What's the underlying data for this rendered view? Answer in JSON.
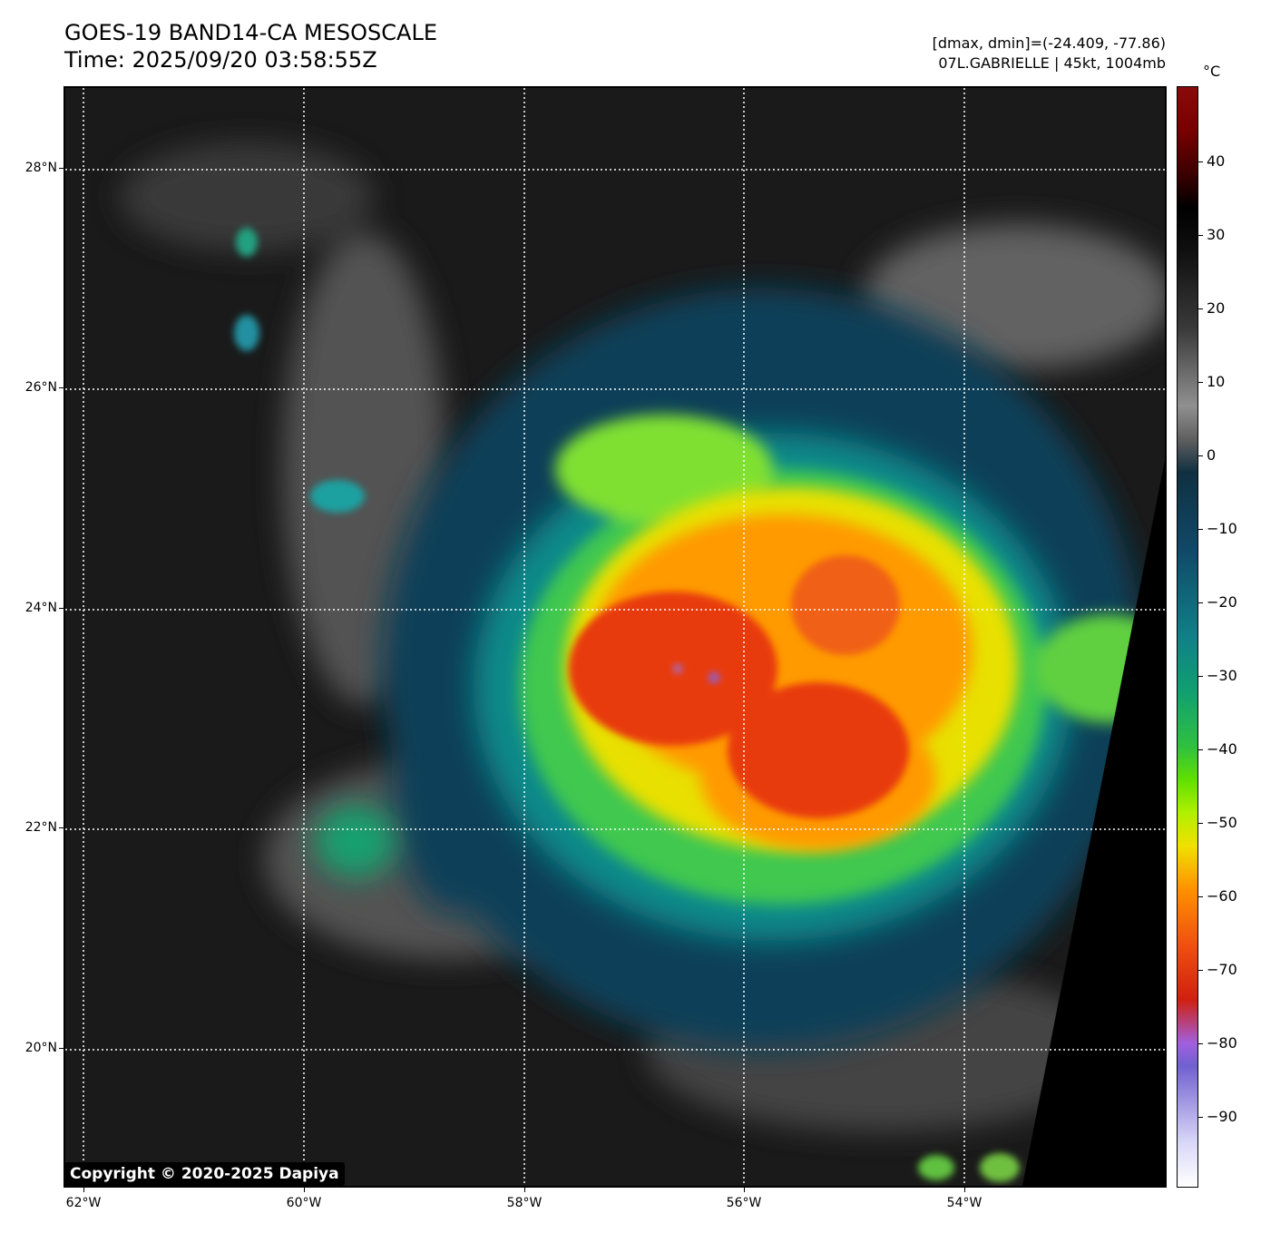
{
  "title": {
    "line1": "GOES-19 BAND14-CA MESOSCALE",
    "line2": "Time: 2025/09/20 03:58:55Z"
  },
  "info": {
    "range": "[dmax, dmin]=(-24.409, -77.86)",
    "storm": "07L.GABRIELLE | 45kt, 1004mb"
  },
  "colorbar": {
    "unit": "°C",
    "ticks": [
      "40",
      "30",
      "20",
      "10",
      "0",
      "−10",
      "−20",
      "−30",
      "−40",
      "−50",
      "−60",
      "−70",
      "−80",
      "−90"
    ],
    "colors": [
      "#ffffff",
      "#7060d0",
      "#d02010",
      "#ff9000",
      "#f0e000",
      "#60e000",
      "#10a070",
      "#108088",
      "#104868",
      "#909090",
      "#101010",
      "#000000",
      "#780000"
    ]
  },
  "axes": {
    "lat_labels": [
      "28°N",
      "26°N",
      "24°N",
      "22°N",
      "20°N"
    ],
    "lon_labels": [
      "62°W",
      "60°W",
      "58°W",
      "56°W",
      "54°W"
    ]
  },
  "copyright": "Copyright © 2020-2025 Dapiya"
}
